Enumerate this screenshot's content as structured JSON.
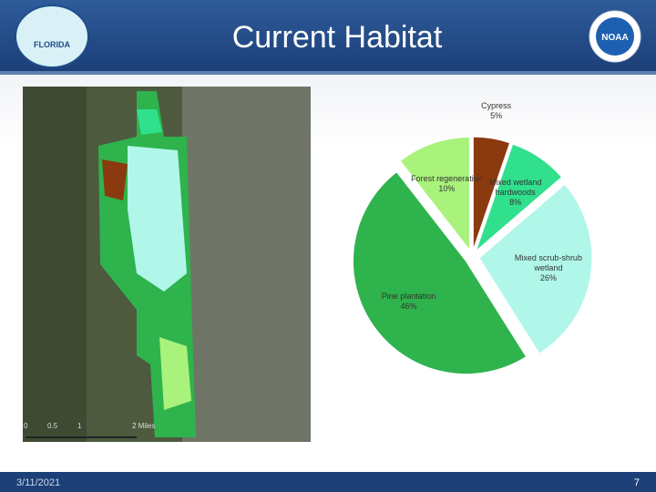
{
  "slide": {
    "title": "Current Habitat",
    "date": "3/11/2021",
    "page": "7",
    "logo_left": "FLORIDA",
    "logo_right": "NOAA"
  },
  "map": {
    "scale_labels": [
      "0",
      "0.5",
      "1",
      "2 Miles"
    ]
  },
  "chart_data": {
    "type": "pie",
    "categories": [
      "Cypress",
      "Mixed wetland hardwoods",
      "Mixed scrub-shrub wetland",
      "Pine plantation",
      "Forest regeneration"
    ],
    "values": [
      5,
      8,
      26,
      46,
      10
    ],
    "value_labels": [
      "5%",
      "8%",
      "26%",
      "46%",
      "10%"
    ],
    "colors": [
      "#8b3a10",
      "#30e08c",
      "#b0f7ea",
      "#2fb34c",
      "#a9f27c"
    ]
  }
}
